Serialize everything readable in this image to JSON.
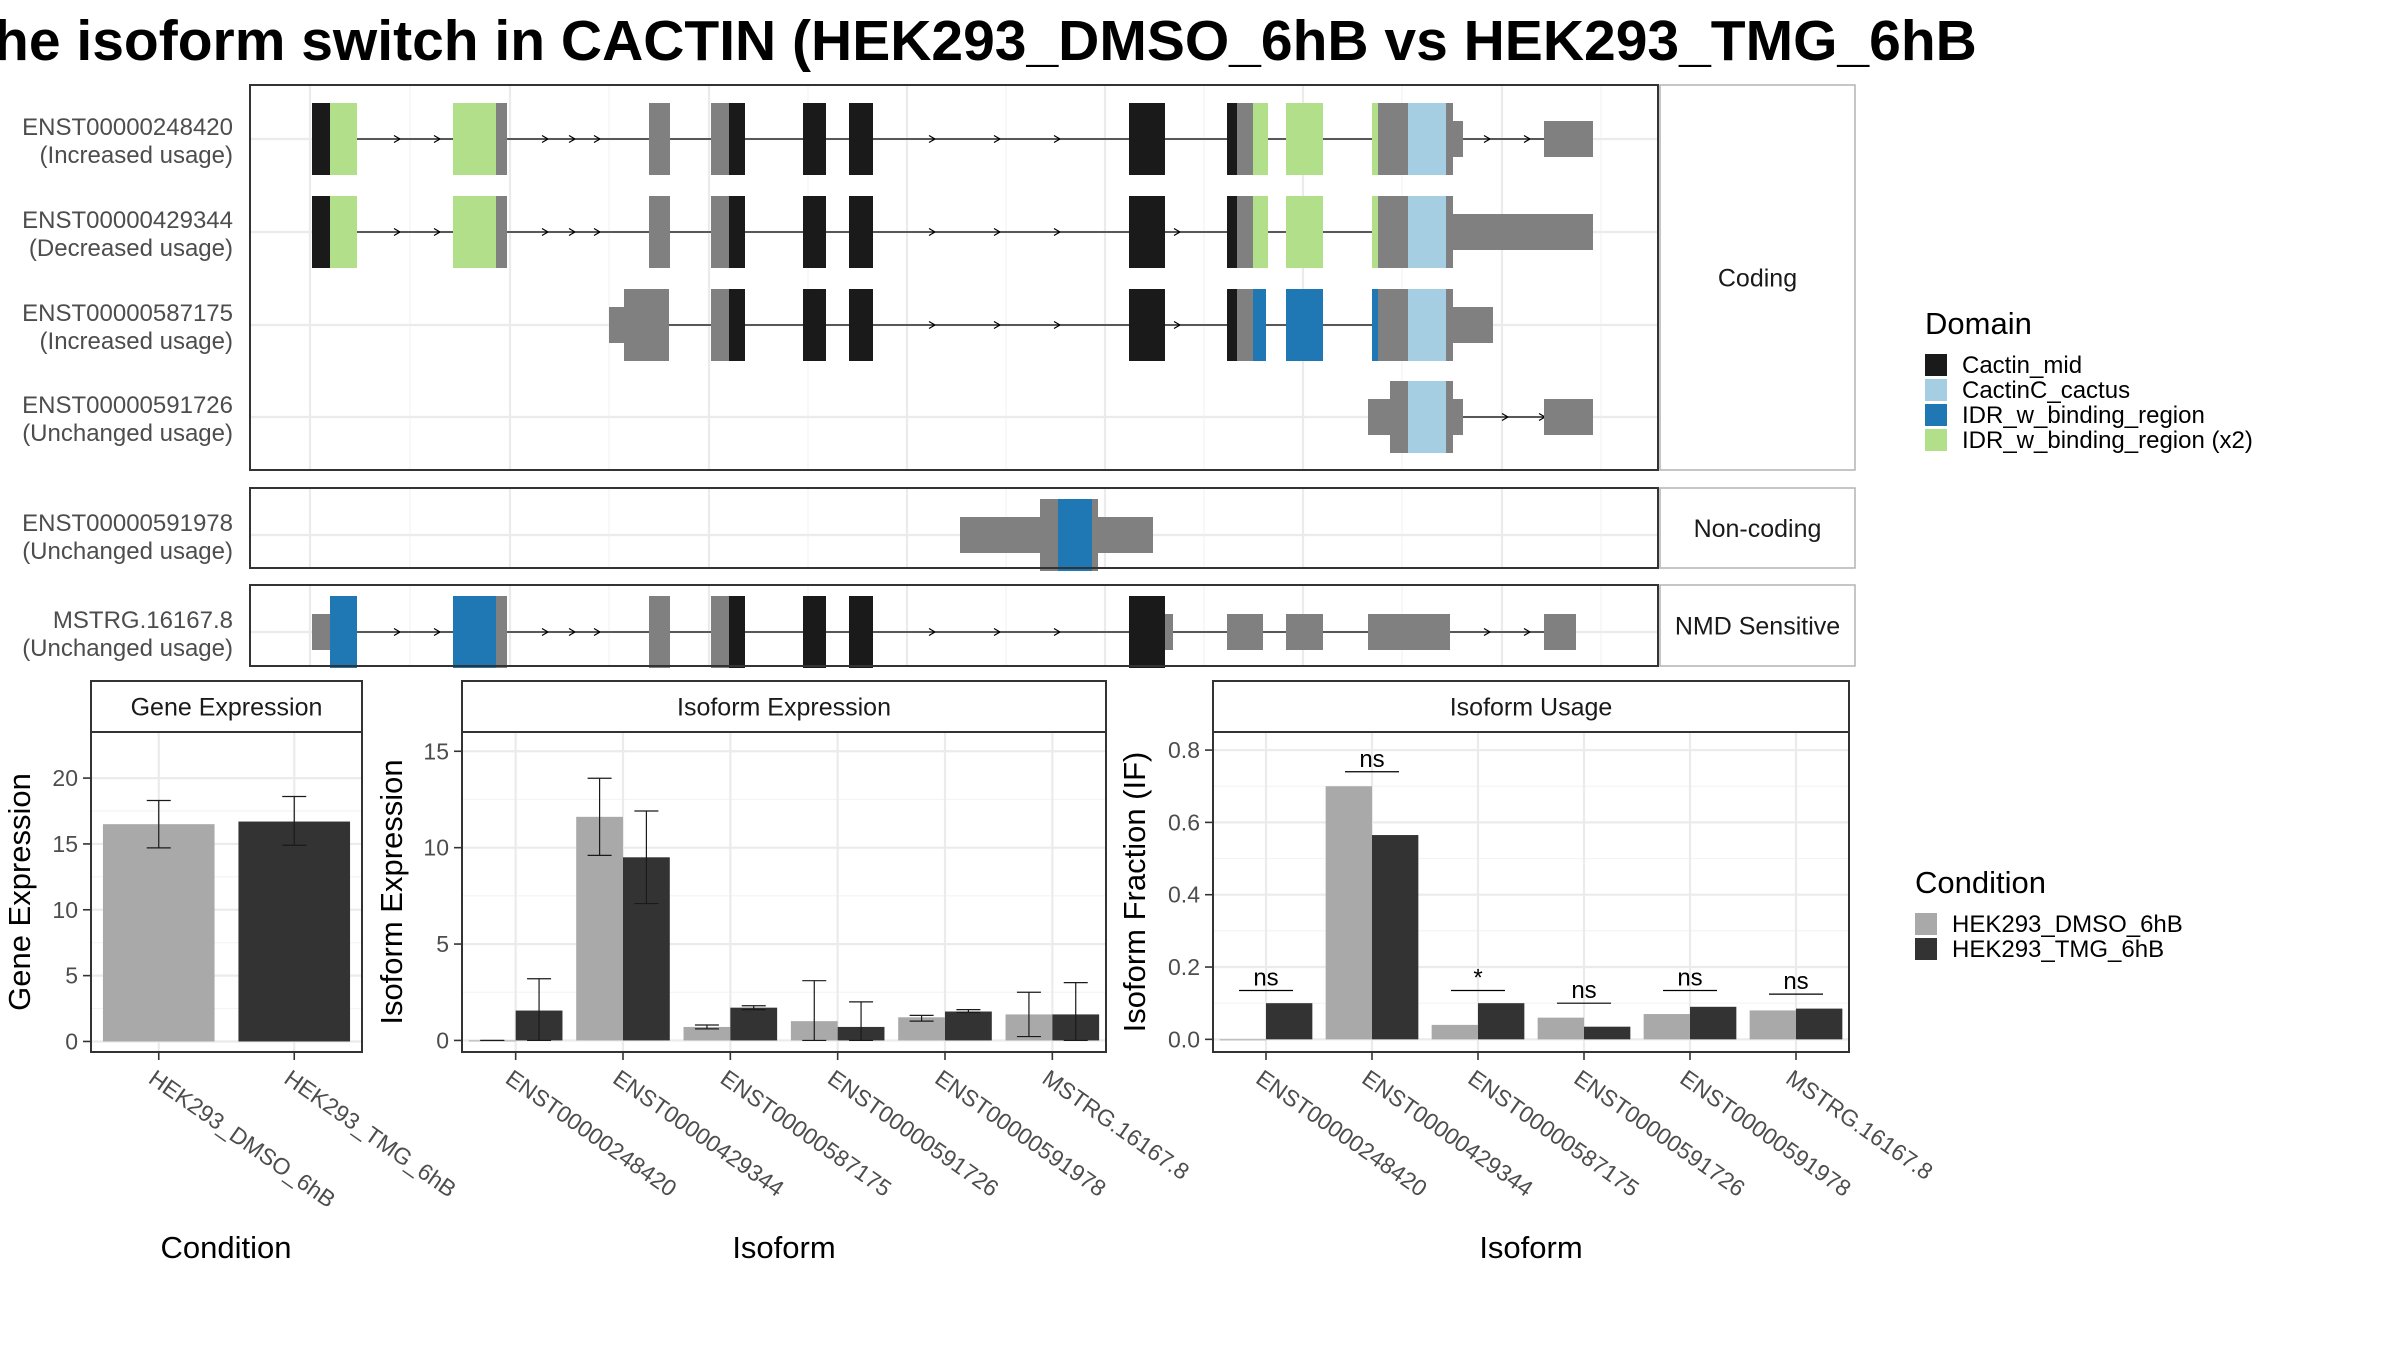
{
  "title": "he isoform switch in CACTIN (HEK293_DMSO_6hB vs HEK293_TMG_6hB",
  "colors": {
    "exon": "#808080",
    "Cactin_mid": "#1a1a1a",
    "CactinC_cactus": "#a6cee3",
    "IDR_w_binding_region": "#1f78b4",
    "IDR_w_binding_region (x2)": "#b2df8a",
    "dmso": "#a9a9a9",
    "tmg": "#333333"
  },
  "domain_legend": {
    "title": "Domain",
    "items": [
      "Cactin_mid",
      "CactinC_cactus",
      "IDR_w_binding_region",
      "IDR_w_binding_region (x2)"
    ]
  },
  "condition_legend": {
    "title": "Condition",
    "items": [
      "HEK293_DMSO_6hB",
      "HEK293_TMG_6hB"
    ]
  },
  "structure": {
    "panels": [
      {
        "label": "Coding",
        "tracks": [
          {
            "id": "ENST00000248420",
            "usage": "(Increased usage)"
          },
          {
            "id": "ENST00000429344",
            "usage": "(Decreased usage)"
          },
          {
            "id": "ENST00000587175",
            "usage": "(Increased usage)"
          },
          {
            "id": "ENST00000591726",
            "usage": "(Unchanged usage)"
          }
        ]
      },
      {
        "label": "Non-coding",
        "tracks": [
          {
            "id": "ENST00000591978",
            "usage": "(Unchanged usage)"
          }
        ]
      },
      {
        "label": "NMD Sensitive",
        "tracks": [
          {
            "id": "MSTRG.16167.8",
            "usage": "(Unchanged usage)"
          }
        ]
      }
    ]
  },
  "chart_data": [
    {
      "type": "bar",
      "title": "Gene Expression",
      "xlabel": "Condition",
      "ylabel": "Gene Expression",
      "categories": [
        "HEK293_DMSO_6hB",
        "HEK293_TMG_6hB"
      ],
      "values": [
        16.5,
        16.7
      ],
      "error": [
        [
          14.7,
          18.3
        ],
        [
          14.9,
          18.6
        ]
      ],
      "ylim": [
        -0.8,
        23.5
      ],
      "yticks": [
        0,
        5,
        10,
        15,
        20
      ],
      "grid": true
    },
    {
      "type": "bar",
      "title": "Isoform Expression",
      "xlabel": "Isoform",
      "ylabel": "Isoform Expression",
      "categories": [
        "ENST00000248420",
        "ENST00000429344",
        "ENST00000587175",
        "ENST00000591726",
        "ENST00000591978",
        "MSTRG.16167.8"
      ],
      "series": [
        {
          "name": "HEK293_DMSO_6hB",
          "values": [
            0,
            11.6,
            0.7,
            1.0,
            1.2,
            1.35
          ],
          "error": [
            [
              0,
              0
            ],
            [
              9.6,
              13.6
            ],
            [
              0.6,
              0.8
            ],
            [
              0,
              3.1
            ],
            [
              1.0,
              1.3
            ],
            [
              0.2,
              2.5
            ]
          ]
        },
        {
          "name": "HEK293_TMG_6hB",
          "values": [
            1.55,
            9.5,
            1.7,
            0.7,
            1.5,
            1.35
          ],
          "error": [
            [
              0,
              3.2
            ],
            [
              7.1,
              11.9
            ],
            [
              1.6,
              1.8
            ],
            [
              0,
              2.0
            ],
            [
              1.45,
              1.6
            ],
            [
              0,
              3.0
            ]
          ]
        }
      ],
      "ylim": [
        -0.6,
        16
      ],
      "yticks": [
        0,
        5,
        10,
        15
      ],
      "grid": true
    },
    {
      "type": "bar",
      "title": "Isoform Usage",
      "xlabel": "Isoform",
      "ylabel": "Isoform Fraction (IF)",
      "categories": [
        "ENST00000248420",
        "ENST00000429344",
        "ENST00000587175",
        "ENST00000591726",
        "ENST00000591978",
        "MSTRG.16167.8"
      ],
      "series": [
        {
          "name": "HEK293_DMSO_6hB",
          "values": [
            0.0,
            0.7,
            0.04,
            0.06,
            0.07,
            0.08
          ]
        },
        {
          "name": "HEK293_TMG_6hB",
          "values": [
            0.1,
            0.565,
            0.1,
            0.035,
            0.09,
            0.085
          ]
        }
      ],
      "significance": [
        "ns",
        "ns",
        "*",
        "ns",
        "ns",
        "ns"
      ],
      "sig_y": [
        0.135,
        0.74,
        0.135,
        0.1,
        0.135,
        0.125
      ],
      "ylim": [
        -0.035,
        0.85
      ],
      "yticks": [
        0.0,
        0.2,
        0.4,
        0.6,
        0.8
      ],
      "ytick_labels": [
        "0.0",
        "0.2",
        "0.4",
        "0.6",
        "0.8"
      ],
      "grid": true
    }
  ]
}
